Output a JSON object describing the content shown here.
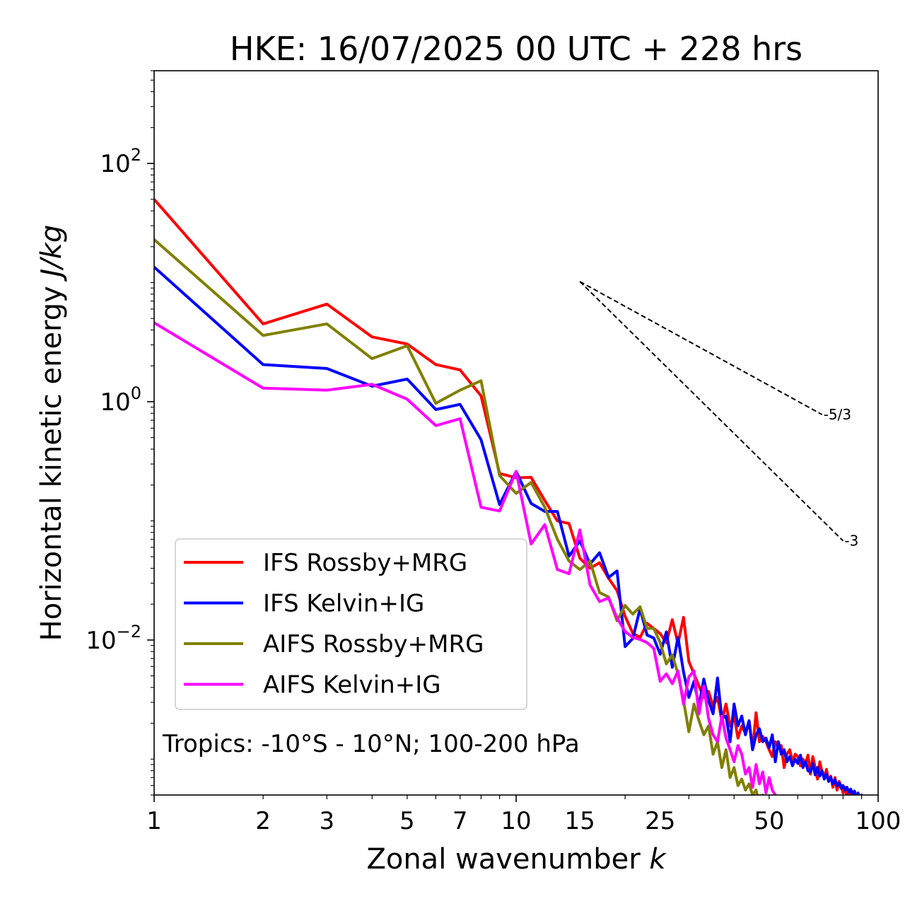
{
  "chart_data": {
    "type": "line",
    "title": "HKE: 16/07/2025 00 UTC + 228 hrs",
    "xlabel_text": "Zonal wavenumber ",
    "xlabel_italic": "k",
    "ylabel_text": "Horizontal kinetic energy ",
    "ylabel_italic": "J/kg",
    "xscale": "log",
    "yscale": "log",
    "xlim": [
      1,
      100
    ],
    "ylim": [
      0.0005,
      600
    ],
    "x_ticks": [
      {
        "value": 1,
        "label": "1"
      },
      {
        "value": 2,
        "label": "2"
      },
      {
        "value": 3,
        "label": "3"
      },
      {
        "value": 5,
        "label": "5"
      },
      {
        "value": 7,
        "label": "7"
      },
      {
        "value": 10,
        "label": "10"
      },
      {
        "value": 15,
        "label": "15"
      },
      {
        "value": 25,
        "label": "25"
      },
      {
        "value": 50,
        "label": "50"
      },
      {
        "value": 100,
        "label": "100"
      }
    ],
    "y_ticks": [
      {
        "value": 100,
        "base": "10",
        "exp": "2"
      },
      {
        "value": 1,
        "base": "10",
        "exp": "0"
      },
      {
        "value": 0.01,
        "base": "10",
        "exp": "−2"
      }
    ],
    "annotation": "Tropics: -10°S - 10°N; 100-200 hPa",
    "legend_position": "lower-left",
    "grid": false,
    "slope_lines": [
      {
        "label": "-5/3",
        "x": [
          15,
          70
        ],
        "y": [
          10.2,
          0.78
        ],
        "color": "#000000"
      },
      {
        "label": "-3",
        "x": [
          15,
          80
        ],
        "y": [
          10.2,
          0.068
        ],
        "color": "#000000"
      }
    ],
    "series": [
      {
        "name": "IFS Rossby+MRG",
        "color": "#ff0000",
        "x": [
          1,
          2,
          3,
          4,
          5,
          6,
          7,
          8,
          9,
          10,
          11,
          12,
          13,
          14,
          15,
          16,
          17,
          18,
          19,
          20,
          21,
          22,
          23,
          24,
          25,
          26,
          27,
          28,
          29,
          30,
          31,
          32,
          33,
          34,
          35,
          36,
          37,
          38,
          39,
          40,
          41,
          42,
          43,
          44,
          45,
          46,
          47,
          48,
          49,
          50,
          51,
          52,
          53,
          54,
          55,
          56,
          57,
          58,
          59,
          60,
          61,
          62,
          63,
          64,
          65,
          66,
          67,
          68,
          69,
          70,
          71,
          72,
          73,
          74,
          75,
          76,
          77,
          78,
          79,
          80,
          81,
          82,
          83,
          84,
          85,
          86,
          87,
          88,
          89,
          90,
          91,
          92,
          93,
          94,
          95,
          96,
          97,
          98,
          99,
          100
        ],
        "y": [
          50,
          4.5,
          6.6,
          3.5,
          3.05,
          2.05,
          1.85,
          1.12,
          0.25,
          0.23,
          0.232,
          0.148,
          0.1,
          0.095,
          0.0485,
          0.04,
          0.0445,
          0.033,
          0.026,
          0.0158,
          0.0114,
          0.0105,
          0.0138,
          0.0125,
          0.0113,
          0.0095,
          0.0148,
          0.0093,
          0.0155,
          0.0066,
          0.0052,
          0.0041,
          0.0033,
          0.0037,
          0.0028,
          0.0033,
          0.0021,
          0.0029,
          0.0019,
          0.0023,
          0.0015,
          0.0019,
          0.00165,
          0.0021,
          0.0012,
          0.00245,
          0.0014,
          0.00155,
          0.0014,
          0.0012,
          0.00105,
          0.0014,
          0.00125,
          0.0013,
          0.00085,
          0.0011,
          0.0012,
          0.00095,
          0.0011,
          0.00105,
          0.00088,
          0.001,
          0.00092,
          0.00108,
          0.00075,
          0.00105,
          0.00085,
          0.00068,
          0.00095,
          0.00078,
          0.0007,
          0.00082,
          0.00065,
          0.00072,
          0.00058,
          0.0007,
          0.00055,
          0.00065,
          0.0006,
          0.00052,
          0.00058,
          0.00048,
          0.00055,
          0.00046,
          0.0005,
          0.00042,
          0.00048,
          0.00038,
          0.00045,
          0.0004,
          0.00036,
          0.00042,
          0.00034,
          0.00038,
          0.0003,
          0.00036,
          0.00028,
          0.00032,
          0.00027,
          0.00025
        ]
      },
      {
        "name": "IFS Kelvin+IG",
        "color": "#0000ff",
        "x": [
          1,
          2,
          3,
          4,
          5,
          6,
          7,
          8,
          9,
          10,
          11,
          12,
          13,
          14,
          15,
          16,
          17,
          18,
          19,
          20,
          21,
          22,
          23,
          24,
          25,
          26,
          27,
          28,
          29,
          30,
          31,
          32,
          33,
          34,
          35,
          36,
          37,
          38,
          39,
          40,
          41,
          42,
          43,
          44,
          45,
          46,
          47,
          48,
          49,
          50,
          51,
          52,
          53,
          54,
          55,
          56,
          57,
          58,
          59,
          60,
          61,
          62,
          63,
          64,
          65,
          66,
          67,
          68,
          69,
          70,
          71,
          72,
          73,
          74,
          75,
          76,
          77,
          78,
          79,
          80,
          81,
          82,
          83,
          84,
          85,
          86,
          87,
          88,
          89,
          90,
          91,
          92,
          93,
          94,
          95,
          96,
          97,
          98,
          99,
          100
        ],
        "y": [
          13.5,
          2.05,
          1.9,
          1.35,
          1.55,
          0.86,
          0.95,
          0.48,
          0.137,
          0.26,
          0.14,
          0.12,
          0.12,
          0.0505,
          0.068,
          0.0435,
          0.054,
          0.0335,
          0.038,
          0.0088,
          0.0103,
          0.0183,
          0.011,
          0.0104,
          0.0076,
          0.0117,
          0.0059,
          0.0105,
          0.0054,
          0.0033,
          0.0045,
          0.0028,
          0.0047,
          0.0031,
          0.0024,
          0.0048,
          0.0022,
          0.0023,
          0.0014,
          0.0029,
          0.0019,
          0.0023,
          0.0016,
          0.0021,
          0.0012,
          0.0016,
          0.0018,
          0.0014,
          0.0015,
          0.00125,
          0.0016,
          0.00095,
          0.0014,
          0.0011,
          0.0012,
          0.00095,
          0.00105,
          0.00088,
          0.001,
          0.00092,
          0.00108,
          0.00085,
          0.00095,
          0.0008,
          0.00078,
          0.00092,
          0.00074,
          0.00085,
          0.00072,
          0.0008,
          0.00068,
          0.00075,
          0.00065,
          0.0007,
          0.00062,
          0.00067,
          0.0006,
          0.00063,
          0.00057,
          0.0006,
          0.00055,
          0.00058,
          0.00053,
          0.00056,
          0.0005,
          0.00054,
          0.00048,
          0.00052,
          0.00046,
          0.0005,
          0.00044,
          0.00048,
          0.00043,
          0.00046,
          0.00041,
          0.00044,
          0.0004,
          0.00042,
          0.00038,
          0.00036
        ]
      },
      {
        "name": "AIFS Rossby+MRG",
        "color": "#808000",
        "x": [
          1,
          2,
          3,
          4,
          5,
          6,
          7,
          8,
          9,
          10,
          11,
          12,
          13,
          14,
          15,
          16,
          17,
          18,
          19,
          20,
          21,
          22,
          23,
          24,
          25,
          26,
          27,
          28,
          29,
          30,
          31,
          32,
          33,
          34,
          35,
          36,
          37,
          38,
          39,
          40,
          41,
          42,
          43,
          44,
          45,
          46,
          47,
          48,
          49,
          50
        ],
        "y": [
          23,
          3.6,
          4.5,
          2.3,
          2.95,
          0.97,
          1.25,
          1.5,
          0.24,
          0.17,
          0.21,
          0.13,
          0.07,
          0.046,
          0.039,
          0.046,
          0.025,
          0.023,
          0.0145,
          0.0195,
          0.0165,
          0.019,
          0.0125,
          0.0125,
          0.0095,
          0.0063,
          0.0075,
          0.0052,
          0.0031,
          0.0017,
          0.0029,
          0.0021,
          0.0016,
          0.0019,
          0.0011,
          0.0014,
          0.00085,
          0.0012,
          0.0007,
          0.00085,
          0.0006,
          0.00068,
          0.00055,
          0.00062,
          0.0005,
          0.00055,
          0.00042,
          0.0005,
          0.00038,
          0.00034
        ]
      },
      {
        "name": "AIFS Kelvin+IG",
        "color": "#ff00ff",
        "x": [
          1,
          2,
          3,
          4,
          5,
          6,
          7,
          8,
          9,
          10,
          11,
          12,
          13,
          14,
          15,
          16,
          17,
          18,
          19,
          20,
          21,
          22,
          23,
          24,
          25,
          26,
          27,
          28,
          29,
          30,
          31,
          32,
          33,
          34,
          35,
          36,
          37,
          38,
          39,
          40,
          41,
          42,
          43,
          44,
          45,
          46,
          47,
          48,
          49,
          50,
          51,
          52,
          53,
          54
        ],
        "y": [
          4.6,
          1.3,
          1.25,
          1.4,
          1.05,
          0.63,
          0.72,
          0.13,
          0.121,
          0.26,
          0.064,
          0.093,
          0.039,
          0.036,
          0.084,
          0.029,
          0.021,
          0.0225,
          0.0153,
          0.0118,
          0.0105,
          0.0101,
          0.0095,
          0.0085,
          0.0045,
          0.0052,
          0.0043,
          0.0055,
          0.0029,
          0.0049,
          0.0055,
          0.0024,
          0.0041,
          0.0022,
          0.0016,
          0.0014,
          0.0023,
          0.0015,
          0.0012,
          0.00095,
          0.0013,
          0.0011,
          0.00075,
          0.00085,
          0.00058,
          0.0009,
          0.00062,
          0.00078,
          0.00052,
          0.0007,
          0.00055,
          0.0005,
          0.00047,
          0.00034
        ]
      }
    ]
  }
}
